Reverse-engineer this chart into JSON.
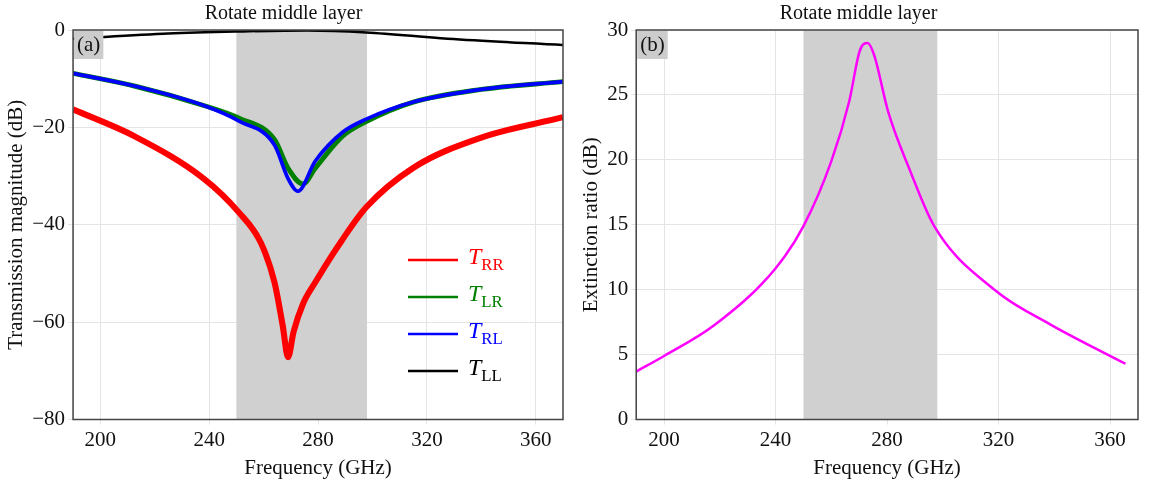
{
  "chart_data": [
    {
      "type": "line",
      "title": "Rotate middle layer",
      "xlabel": "Frequency (GHz)",
      "ylabel": "Transmission magnitude (dB)",
      "annotations": [
        "(a)"
      ],
      "xlim": [
        190,
        370
      ],
      "xticks": [
        200,
        240,
        280,
        320,
        360
      ],
      "ylim": [
        -80,
        0
      ],
      "yticks": [
        {
          "value": -80,
          "label": "−80"
        },
        {
          "value": -60,
          "label": "−60"
        },
        {
          "value": -40,
          "label": "−40"
        },
        {
          "value": -20,
          "label": "−20"
        },
        0
      ],
      "grid": true,
      "legend": "bottom right",
      "marker": "none",
      "line_style": "solid",
      "bands": [
        {
          "axis": "x",
          "from": 250,
          "to": 298,
          "color": "#d0d0d0"
        }
      ],
      "series": [
        {
          "name": "T$_{RR}$",
          "color": "#ff0000",
          "x": [
            190,
            212.5,
            238,
            251,
            259,
            264,
            267,
            269,
            271,
            274.5,
            279,
            289,
            297.7,
            315,
            340,
            370
          ],
          "values": [
            -16.3,
            -21.8,
            -30.5,
            -37.5,
            -43.7,
            -51.8,
            -60.6,
            -67.2,
            -62,
            -56.2,
            -51.8,
            -43,
            -36.4,
            -28.3,
            -22.1,
            -17.9
          ]
        },
        {
          "name": "T$_{LR}$",
          "color": "#008000",
          "x": [
            190,
            212.5,
            238,
            251,
            264,
            269,
            274.5,
            279,
            289,
            297.7,
            315,
            340,
            370
          ],
          "values": [
            -8.9,
            -11.5,
            -15.5,
            -18.1,
            -22.5,
            -28.4,
            -31.6,
            -28.4,
            -21.8,
            -18.8,
            -14.8,
            -12.2,
            -10.6
          ]
        },
        {
          "name": "T$_{RL}$",
          "color": "#0000ff",
          "x": [
            190,
            212.5,
            238,
            251,
            264,
            269,
            272.6,
            279,
            289,
            297.7,
            315,
            340,
            370
          ],
          "values": [
            -8.9,
            -11.5,
            -15.5,
            -18.7,
            -23.6,
            -30.5,
            -33.1,
            -26.9,
            -21,
            -18.3,
            -14.8,
            -12.2,
            -10.6
          ]
        },
        {
          "name": "T$_{LL}$",
          "color": "#000000",
          "x": [
            190,
            225,
            251,
            276,
            297.7,
            327.6,
            370
          ],
          "values": [
            -1.8,
            -0.7,
            -0.3,
            -0.1,
            -0.5,
            -1.8,
            -3.1
          ]
        }
      ]
    },
    {
      "type": "line",
      "title": "Rotate middle layer",
      "xlabel": "Frequency (GHz)",
      "ylabel": "Extinction ratio (dB)",
      "annotations": [
        "(b)"
      ],
      "xlim": [
        190,
        370
      ],
      "xticks": [
        200,
        240,
        280,
        320,
        360
      ],
      "ylim": [
        0,
        30
      ],
      "yticks": [
        0,
        5,
        10,
        15,
        20,
        25,
        30
      ],
      "grid": true,
      "marker": "none",
      "line_style": "solid",
      "bands": [
        {
          "axis": "x",
          "from": 250,
          "to": 298,
          "color": "#d0d0d0"
        }
      ],
      "series": [
        {
          "color": "#ff00ff",
          "x": [
            190,
            200,
            218.2,
            239.8,
            250,
            260,
            266.4,
            270.2,
            273,
            275.3,
            280.4,
            288,
            296.9,
            319.1,
            338.8,
            365.5
          ],
          "values": [
            3.7,
            4.9,
            7.3,
            11.6,
            14.9,
            19.9,
            24.5,
            28.4,
            29,
            28.1,
            23.7,
            19.3,
            14.9,
            9.9,
            7.3,
            4.3
          ]
        }
      ]
    }
  ]
}
